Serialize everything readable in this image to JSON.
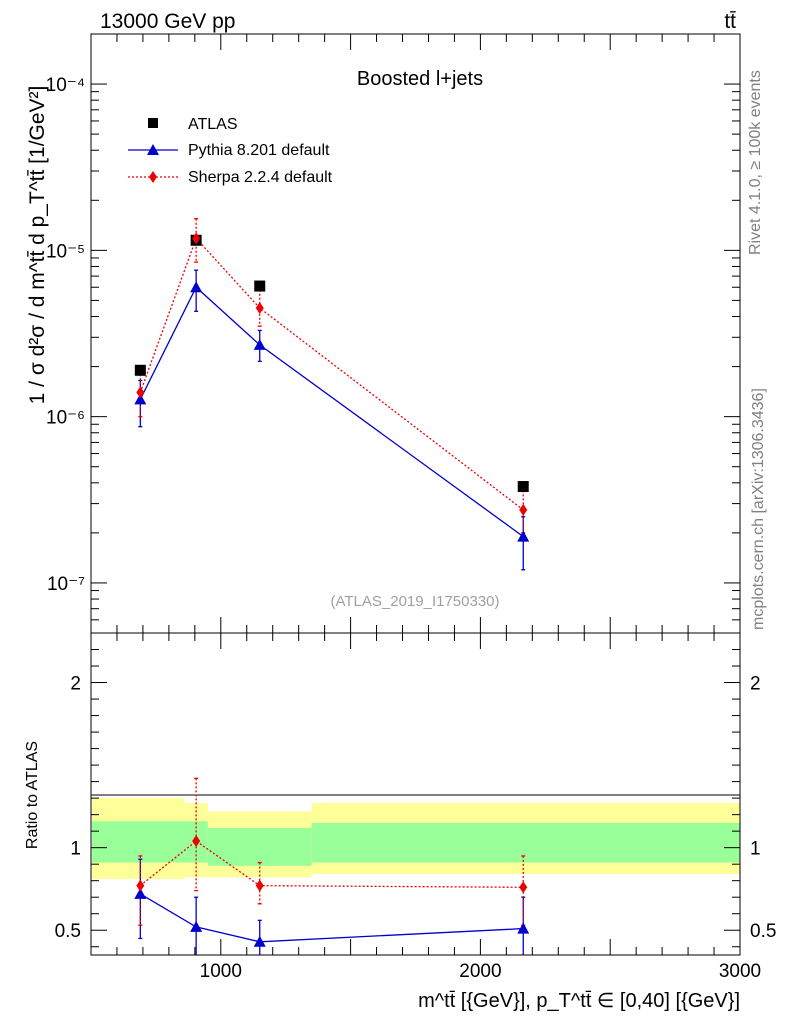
{
  "header": {
    "energy": "13000 GeV pp",
    "process": "tt̄"
  },
  "side_labels": {
    "rivet": "Rivet 4.1.0, ≥ 100k events",
    "mcplots": "mcplots.cern.ch [arXiv:1306.3436]"
  },
  "colors": {
    "atlas": "#000000",
    "pythia": "#0000cc",
    "sherpa": "#ee0000",
    "band_inner": "#99ff99",
    "band_outer": "#ffff99"
  },
  "chart_data": [
    {
      "type": "scatter",
      "title": "Boosted l+jets",
      "ylabel": "1 / σ d²σ / d m^tt̄ d p_T^tt̄ [1/GeV²]",
      "yscale": "log",
      "ylim": [
        5e-08,
        0.0002
      ],
      "xlim": [
        500,
        3000
      ],
      "y_ticks": [
        {
          "value": 1e-07,
          "label": "10⁻⁷"
        },
        {
          "value": 1e-06,
          "label": "10⁻⁶"
        },
        {
          "value": 1e-05,
          "label": "10⁻⁵"
        },
        {
          "value": 0.0001,
          "label": "10⁻⁴"
        }
      ],
      "watermark": "(ATLAS_2019_I1750330)",
      "legend_position": "top-left",
      "series": [
        {
          "name": "ATLAS",
          "marker": "square",
          "x": [
            690,
            905,
            1150,
            2165
          ],
          "y": [
            1.9e-06,
            1.15e-05,
            6.1e-06,
            3.8e-07
          ],
          "y_low": [
            1.9e-06,
            1.15e-05,
            6.1e-06,
            3.8e-07
          ],
          "y_high": [
            1.9e-06,
            1.15e-05,
            6.1e-06,
            3.8e-07
          ]
        },
        {
          "name": "Pythia 8.201 default",
          "marker": "triangle",
          "line": "solid",
          "x": [
            690,
            905,
            1150,
            2165
          ],
          "y": [
            1.27e-06,
            6e-06,
            2.7e-06,
            1.9e-07
          ],
          "y_low": [
            8.7e-07,
            4.3e-06,
            2.15e-06,
            1.2e-07
          ],
          "y_high": [
            1.65e-06,
            7.6e-06,
            3.3e-06,
            2.5e-07
          ]
        },
        {
          "name": "Sherpa 2.2.4 default",
          "marker": "diamond",
          "line": "dotted",
          "x": [
            690,
            905,
            1150,
            2165
          ],
          "y": [
            1.4e-06,
            1.18e-05,
            4.5e-06,
            2.75e-07
          ],
          "y_low": [
            1e-06,
            8.5e-06,
            3.5e-06,
            2e-07
          ],
          "y_high": [
            1.8e-06,
            1.55e-05,
            5.8e-06,
            3.6e-07
          ]
        }
      ]
    },
    {
      "type": "scatter",
      "title": "",
      "ylabel": "Ratio to ATLAS",
      "xlabel": "m^tt̄ [{GeV}], p_T^tt̄ ∈ [0,40] [{GeV}]",
      "ylim": [
        0.35,
        2.3
      ],
      "xlim": [
        500,
        3000
      ],
      "x_ticks": [
        1000,
        2000,
        3000
      ],
      "y_ticks": [
        {
          "value": 0.5,
          "label": "0.5"
        },
        {
          "value": 1,
          "label": "1"
        },
        {
          "value": 2,
          "label": "2"
        }
      ],
      "bands": [
        {
          "x_from": 480,
          "x_to": 860,
          "inner": [
            0.91,
            1.16
          ],
          "outer": [
            0.81,
            1.3
          ]
        },
        {
          "x_from": 860,
          "x_to": 950,
          "inner": [
            0.91,
            1.16
          ],
          "outer": [
            0.82,
            1.27
          ]
        },
        {
          "x_from": 950,
          "x_to": 1350,
          "inner": [
            0.89,
            1.12
          ],
          "outer": [
            0.82,
            1.22
          ]
        },
        {
          "x_from": 1350,
          "x_to": 3000,
          "inner": [
            0.91,
            1.15
          ],
          "outer": [
            0.84,
            1.27
          ]
        }
      ],
      "series": [
        {
          "name": "Pythia 8.201 default",
          "x": [
            690,
            905,
            1150,
            2165
          ],
          "y": [
            0.72,
            0.52,
            0.43,
            0.51
          ],
          "y_low": [
            0.45,
            0.34,
            0.33,
            0.32
          ],
          "y_high": [
            0.93,
            0.7,
            0.56,
            0.7
          ]
        },
        {
          "name": "Sherpa 2.2.4 default",
          "x": [
            690,
            905,
            1150,
            2165
          ],
          "y": [
            0.77,
            1.04,
            0.77,
            0.76
          ],
          "y_low": [
            0.53,
            0.74,
            0.66,
            0.53
          ],
          "y_high": [
            0.95,
            1.42,
            0.91,
            0.95
          ]
        }
      ]
    }
  ]
}
